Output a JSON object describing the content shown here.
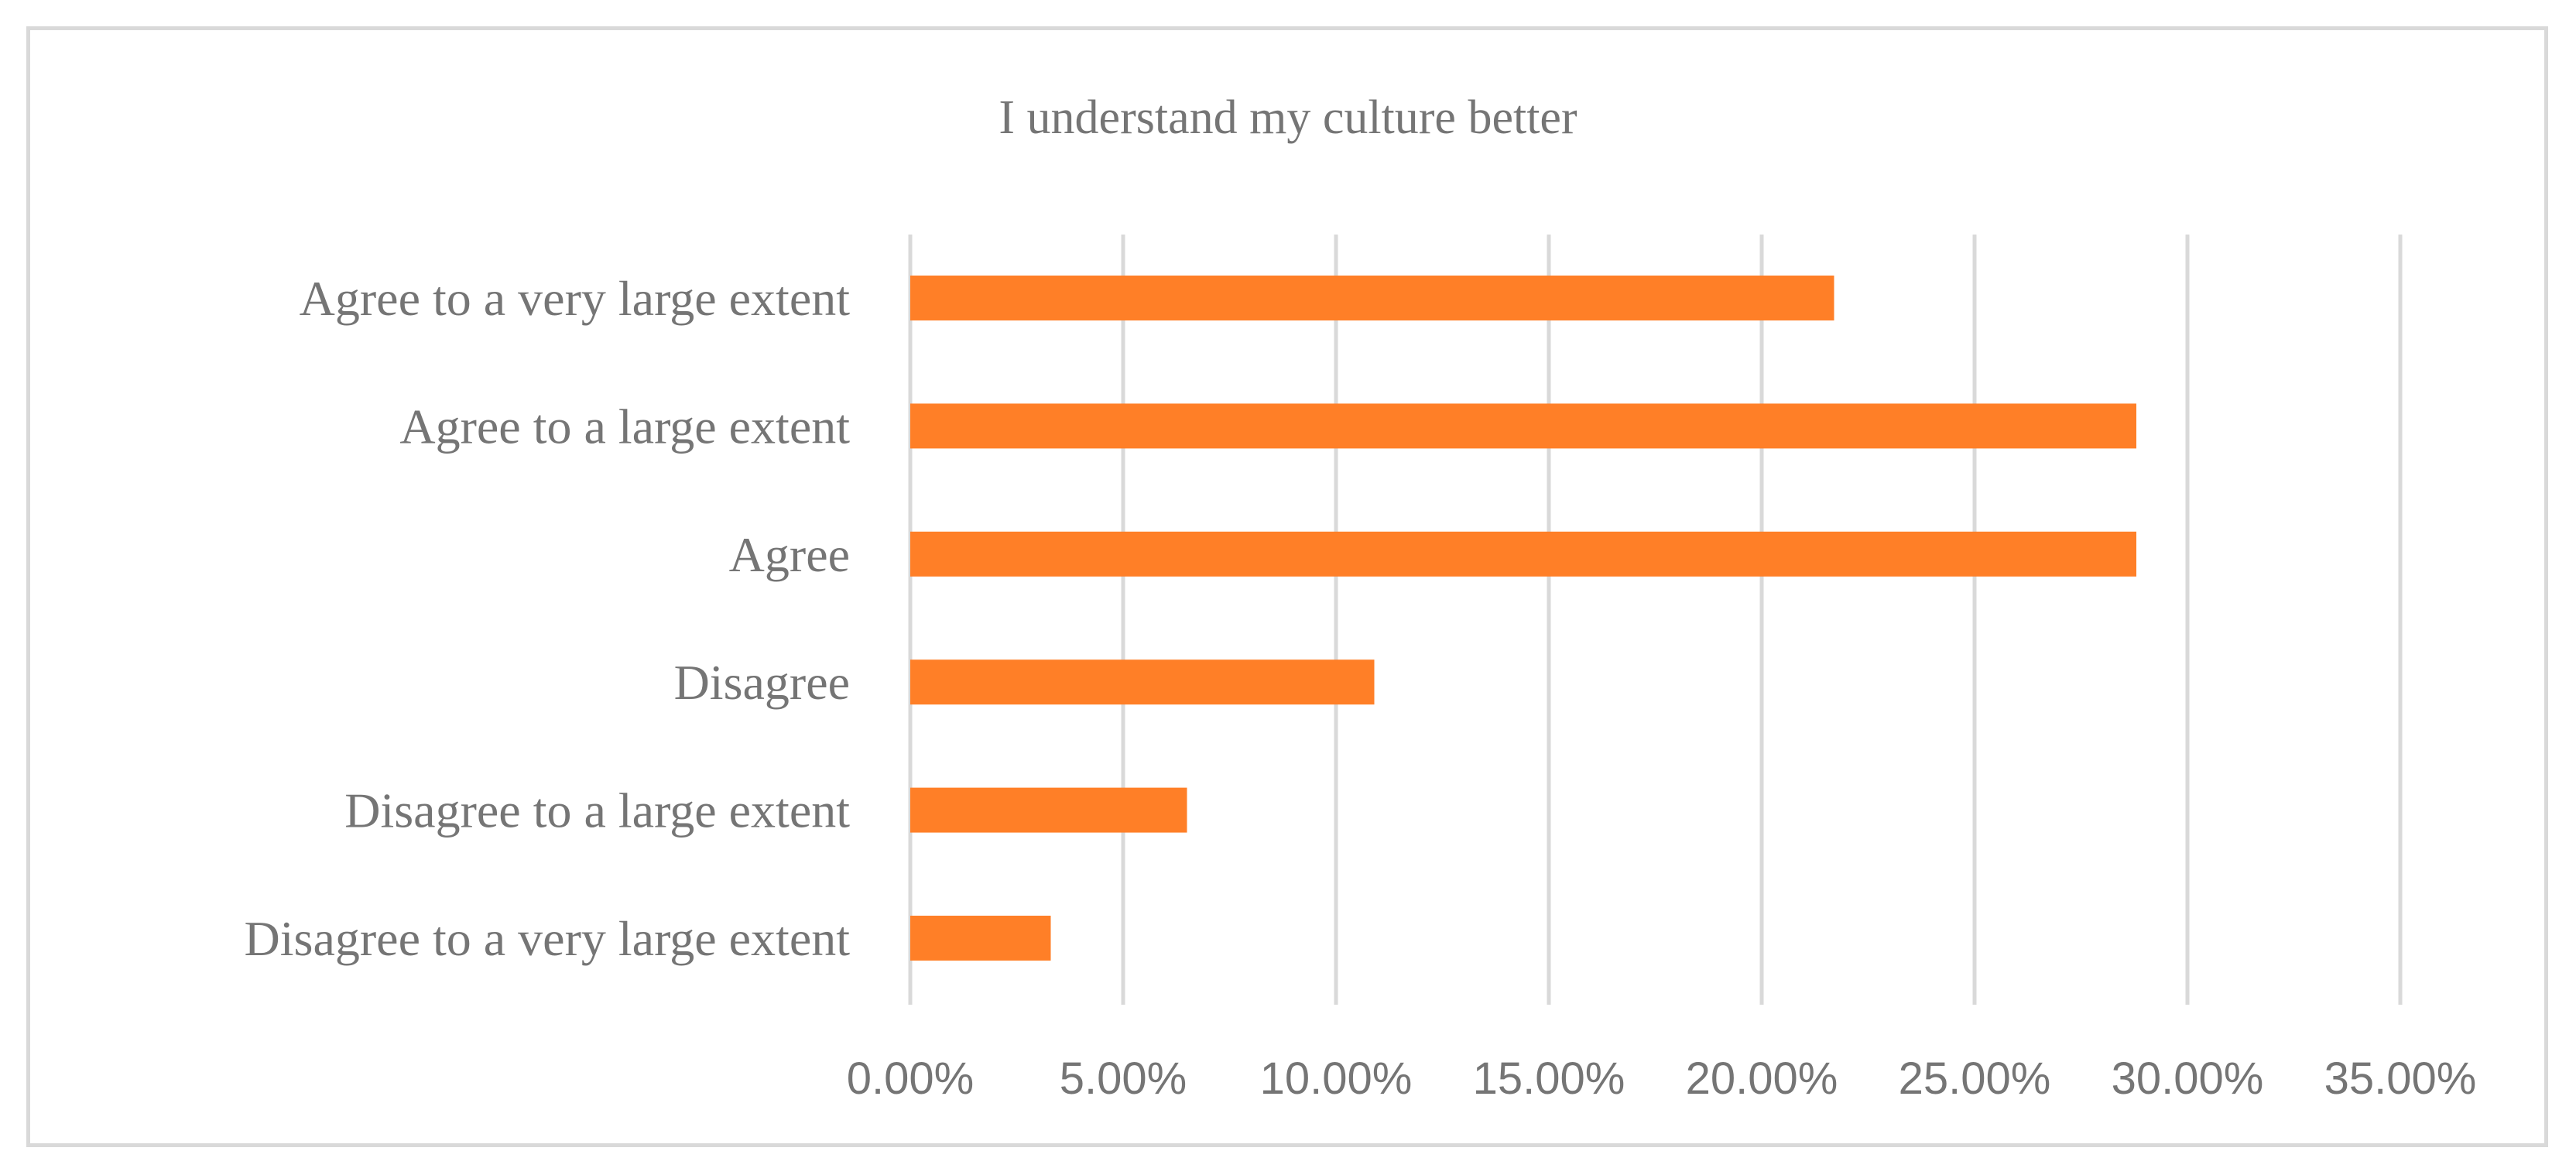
{
  "chart_data": {
    "type": "bar",
    "orientation": "horizontal",
    "title": "I understand my culture better",
    "xlabel": "",
    "ylabel": "",
    "categories": [
      "Agree to a very large extent",
      "Agree to a large extent",
      "Agree",
      "Disagree",
      "Disagree to a large extent",
      "Disagree to a very large extent"
    ],
    "values": [
      21.7,
      28.8,
      28.8,
      10.9,
      6.5,
      3.3
    ],
    "xlim": [
      0,
      35
    ],
    "ticks": [
      0,
      5,
      10,
      15,
      20,
      25,
      30,
      35
    ],
    "tick_labels": [
      "0.00%",
      "5.00%",
      "10.00%",
      "15.00%",
      "20.00%",
      "25.00%",
      "30.00%",
      "35.00%"
    ],
    "grid": true,
    "legend": "none",
    "bar_color": "#ff7f27",
    "grid_color": "#d9d9d9",
    "text_color": "#757575"
  }
}
